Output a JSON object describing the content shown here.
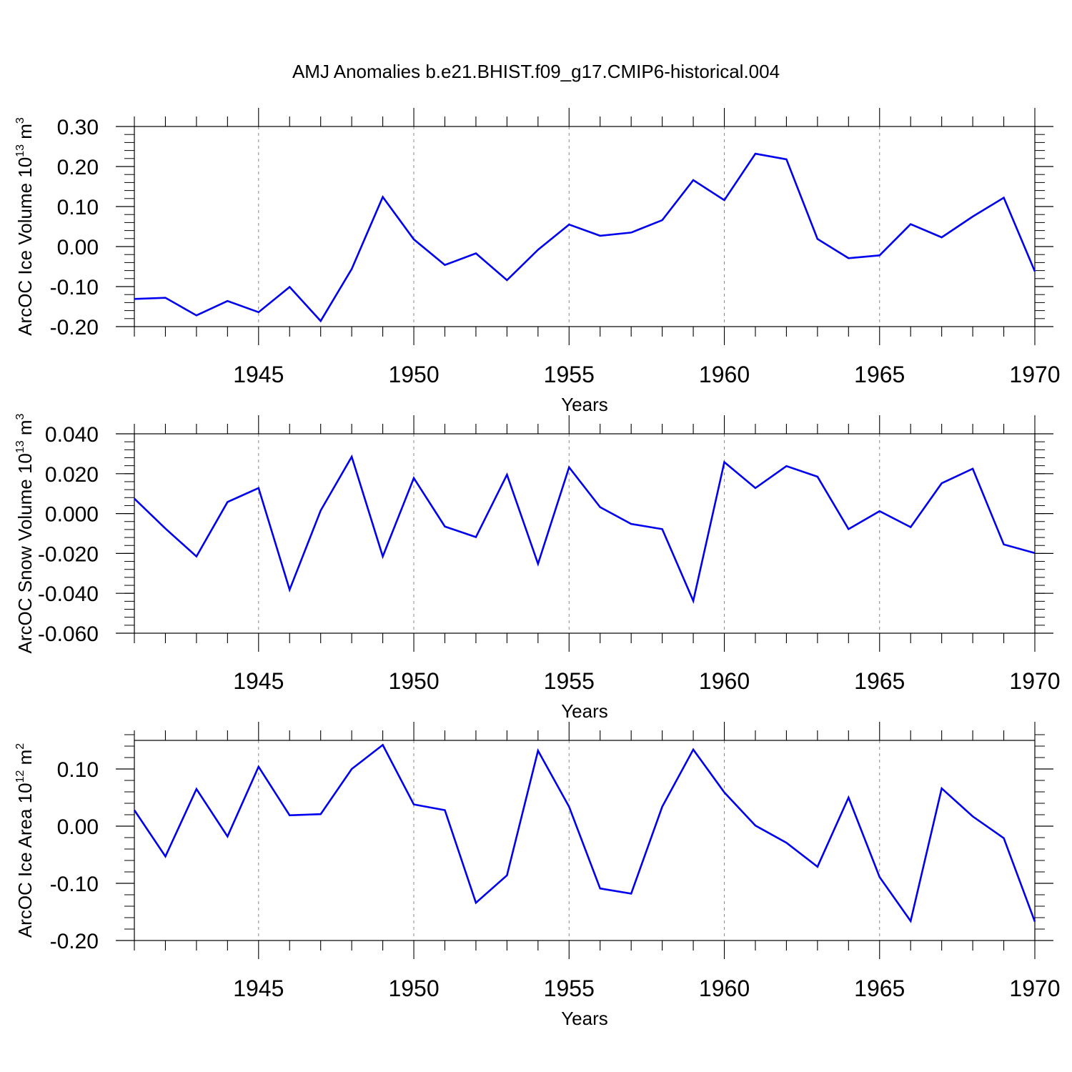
{
  "figure": {
    "title": "AMJ Anomalies b.e21.BHIST.f09_g17.CMIP6-historical.004",
    "line_color": "#0000ee",
    "grid_color": "#888888",
    "axis_color": "#000000"
  },
  "chart_data": [
    {
      "type": "line",
      "title": "",
      "xlabel": "Years",
      "ylabel": {
        "text": "ArcOC Ice Volume 10",
        "exp": "13",
        "unit": " m",
        "unit_exp": "3"
      },
      "xlim": [
        1941,
        1970
      ],
      "ylim": [
        -0.2,
        0.3
      ],
      "x_ticks": [
        1945,
        1950,
        1955,
        1960,
        1965,
        1970
      ],
      "y_ticks": [
        -0.2,
        -0.1,
        0.0,
        0.1,
        0.2,
        0.3
      ],
      "y_tick_labels": [
        "-0.20",
        "-0.10",
        "0.00",
        "0.10",
        "0.20",
        "0.30"
      ],
      "y_minor_step": 0.02,
      "grid": "x-major-dashed",
      "x": [
        1941,
        1942,
        1943,
        1944,
        1945,
        1946,
        1947,
        1948,
        1949,
        1950,
        1951,
        1952,
        1953,
        1954,
        1955,
        1956,
        1957,
        1958,
        1959,
        1960,
        1961,
        1962,
        1963,
        1964,
        1965,
        1966,
        1967,
        1968,
        1969,
        1970
      ],
      "values": [
        -0.131,
        -0.128,
        -0.172,
        -0.136,
        -0.164,
        -0.101,
        -0.186,
        -0.056,
        0.124,
        0.018,
        -0.046,
        -0.017,
        -0.084,
        -0.008,
        0.055,
        0.027,
        0.035,
        0.066,
        0.166,
        0.116,
        0.232,
        0.218,
        0.019,
        -0.029,
        -0.022,
        0.056,
        0.023,
        0.075,
        0.122,
        -0.062
      ]
    },
    {
      "type": "line",
      "title": "",
      "xlabel": "Years",
      "ylabel": {
        "text": "ArcOC Snow Volume 10",
        "exp": "13",
        "unit": " m",
        "unit_exp": "3"
      },
      "xlim": [
        1941,
        1970
      ],
      "ylim": [
        -0.06,
        0.04
      ],
      "x_ticks": [
        1945,
        1950,
        1955,
        1960,
        1965,
        1970
      ],
      "y_ticks": [
        -0.06,
        -0.04,
        -0.02,
        0.0,
        0.02,
        0.04
      ],
      "y_tick_labels": [
        "-0.060",
        "-0.040",
        "-0.020",
        "0.000",
        "0.020",
        "0.040"
      ],
      "y_minor_step": 0.004,
      "grid": "x-major-dashed",
      "x": [
        1941,
        1942,
        1943,
        1944,
        1945,
        1946,
        1947,
        1948,
        1949,
        1950,
        1951,
        1952,
        1953,
        1954,
        1955,
        1956,
        1957,
        1958,
        1959,
        1960,
        1961,
        1962,
        1963,
        1964,
        1965,
        1966,
        1967,
        1968,
        1969,
        1970
      ],
      "values": [
        0.0075,
        -0.0075,
        -0.0215,
        0.0058,
        0.0128,
        -0.0382,
        0.0015,
        0.0285,
        -0.0215,
        0.0178,
        -0.0065,
        -0.0118,
        0.0195,
        -0.0252,
        0.0232,
        0.0032,
        -0.0052,
        -0.0078,
        -0.0438,
        0.0258,
        0.0128,
        0.0238,
        0.0185,
        -0.0078,
        0.0012,
        -0.0068,
        0.0152,
        0.0225,
        -0.0155,
        -0.0198
      ]
    },
    {
      "type": "line",
      "title": "",
      "xlabel": "Years",
      "ylabel": {
        "text": "ArcOC Ice Area 10",
        "exp": "12",
        "unit": " m",
        "unit_exp": "2"
      },
      "xlim": [
        1941,
        1970
      ],
      "ylim": [
        -0.2,
        0.15
      ],
      "x_ticks": [
        1945,
        1950,
        1955,
        1960,
        1965,
        1970
      ],
      "y_ticks": [
        -0.2,
        -0.1,
        0.0,
        0.1
      ],
      "y_tick_labels": [
        "-0.20",
        "-0.10",
        "0.00",
        "0.10"
      ],
      "y_minor_step": 0.02,
      "grid": "x-major-dashed",
      "x": [
        1941,
        1942,
        1943,
        1944,
        1945,
        1946,
        1947,
        1948,
        1949,
        1950,
        1951,
        1952,
        1953,
        1954,
        1955,
        1956,
        1957,
        1958,
        1959,
        1960,
        1961,
        1962,
        1963,
        1964,
        1965,
        1966,
        1967,
        1968,
        1969,
        1970
      ],
      "values": [
        0.028,
        -0.053,
        0.065,
        -0.018,
        0.104,
        0.019,
        0.021,
        0.1,
        0.142,
        0.038,
        0.028,
        -0.134,
        -0.086,
        0.132,
        0.034,
        -0.109,
        -0.118,
        0.034,
        0.134,
        0.059,
        0.001,
        -0.029,
        -0.071,
        0.05,
        -0.089,
        -0.166,
        0.066,
        0.017,
        -0.021,
        -0.167
      ]
    }
  ]
}
